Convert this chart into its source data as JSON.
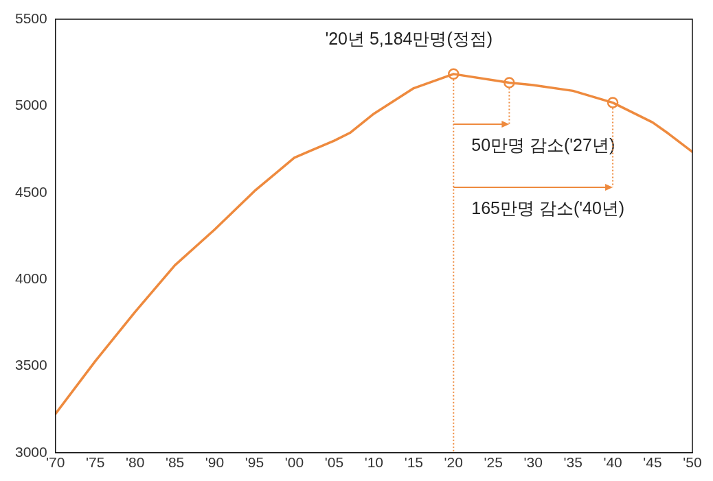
{
  "chart_data": {
    "type": "line",
    "xlim": [
      1970,
      2050
    ],
    "ylim": [
      3000,
      5500
    ],
    "xticks": [
      {
        "value": 1970,
        "label": "'70"
      },
      {
        "value": 1975,
        "label": "'75"
      },
      {
        "value": 1980,
        "label": "'80"
      },
      {
        "value": 1985,
        "label": "'85"
      },
      {
        "value": 1990,
        "label": "'90"
      },
      {
        "value": 1995,
        "label": "'95"
      },
      {
        "value": 2000,
        "label": "'00"
      },
      {
        "value": 2005,
        "label": "'05"
      },
      {
        "value": 2010,
        "label": "'10"
      },
      {
        "value": 2015,
        "label": "'15"
      },
      {
        "value": 2020,
        "label": "'20"
      },
      {
        "value": 2025,
        "label": "'25"
      },
      {
        "value": 2030,
        "label": "'30"
      },
      {
        "value": 2035,
        "label": "'35"
      },
      {
        "value": 2040,
        "label": "'40"
      },
      {
        "value": 2045,
        "label": "'45"
      },
      {
        "value": 2050,
        "label": "'50"
      }
    ],
    "yticks": [
      3000,
      3500,
      4000,
      4500,
      5000,
      5500
    ],
    "grid": false,
    "legend": false,
    "ref_lines": [
      {
        "axis": "x",
        "value": 2020,
        "color": "#ee8a3e",
        "line_style": "dotted"
      }
    ],
    "series": [
      {
        "color": "#ee8a3e",
        "marker": "none",
        "line_style": "solid",
        "x": [
          1970,
          1975,
          1980,
          1985,
          1990,
          1995,
          2000,
          2002,
          2005,
          2007,
          2010,
          2015,
          2020,
          2027,
          2030,
          2035,
          2040,
          2045,
          2047,
          2050
        ],
        "values": [
          3224,
          3528,
          3812,
          4081,
          4287,
          4509,
          4701,
          4741,
          4799,
          4845,
          4955,
          5102,
          5184,
          5134,
          5120,
          5087,
          5019,
          4905,
          4840,
          4735
        ]
      },
      {
        "type": "scatter",
        "color": "#ee8a3e",
        "marker": "circle",
        "x": [
          2020,
          2027,
          2040
        ],
        "values": [
          5184,
          5134,
          5019
        ]
      }
    ],
    "annotations": [
      {
        "text": "'20년 5,184만명(정점)",
        "x": 2020,
        "y": 5184
      },
      {
        "text": "50만명 감소('27년)",
        "x": 2027,
        "y": 5134
      },
      {
        "text": "165만명 감소('40년)",
        "x": 2040,
        "y": 5019
      }
    ]
  }
}
